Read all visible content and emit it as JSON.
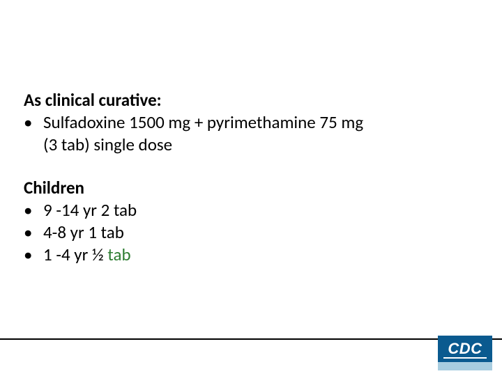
{
  "section1": {
    "heading": "As clinical curative:",
    "bullets": [
      {
        "line1": "Sulfadoxine 1500 mg + pyrimethamine 75 mg",
        "line2": "(3 tab) single dose"
      }
    ]
  },
  "section2": {
    "heading": "Children",
    "bullets": [
      {
        "text": "9 -14 yr 2 tab"
      },
      {
        "text": " 4-8 yr 1 tab"
      },
      {
        "text_prefix": "1 -4 yr ½",
        "text_suffix": "  tab",
        "suffix_color": "#2e7d32"
      }
    ]
  },
  "logo": {
    "text": "CDC",
    "subtext": "",
    "bg_color": "#0a5a8f",
    "sub_bg_color": "#a8cde0",
    "text_color": "#ffffff"
  },
  "colors": {
    "text": "#000000",
    "background": "#ffffff",
    "line": "#000000"
  },
  "typography": {
    "body_fontsize": 25,
    "body_font": "Calibri",
    "heading_weight": 700
  }
}
